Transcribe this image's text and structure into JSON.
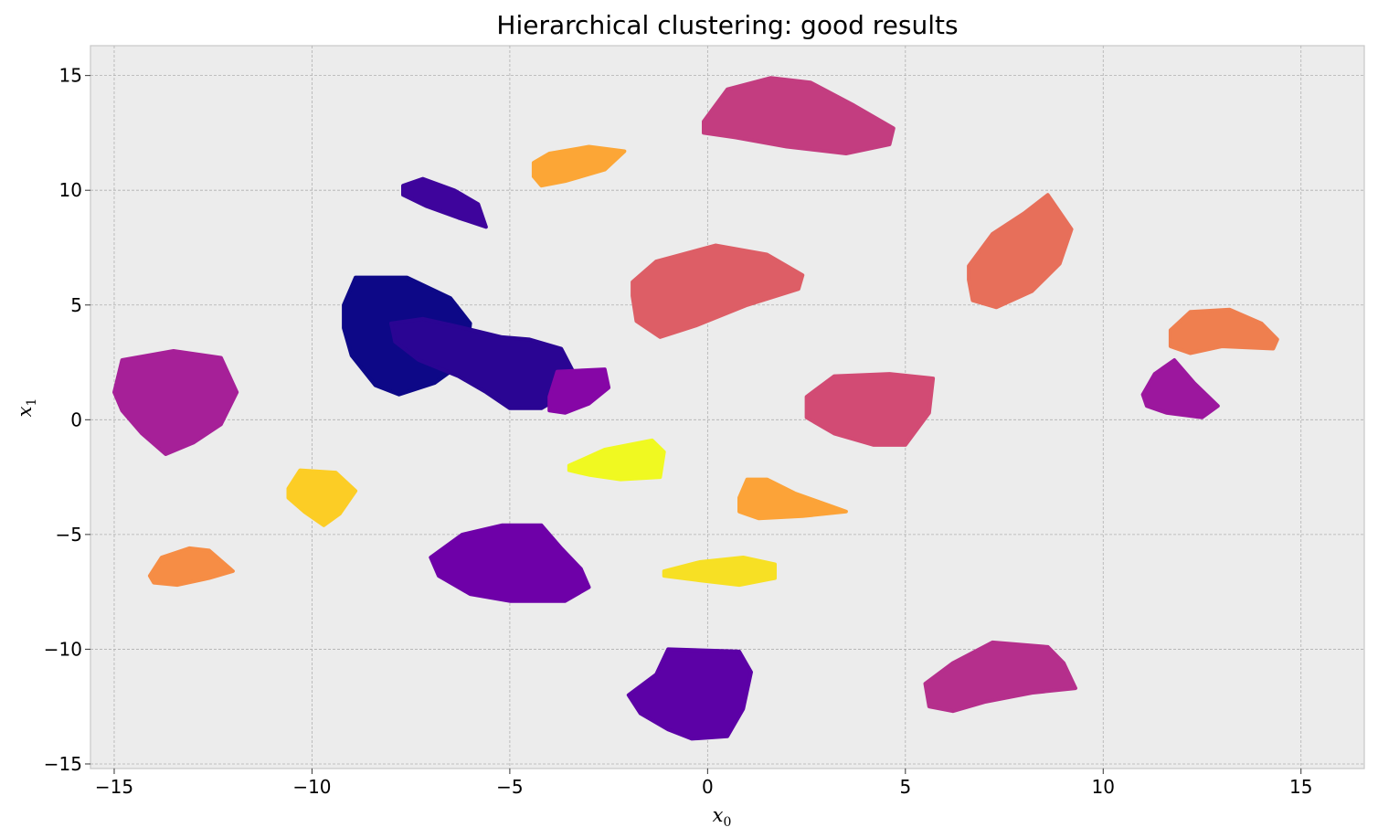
{
  "chart_data": {
    "type": "scatter",
    "title": "Hierarchical clustering: good results",
    "xlabel": {
      "main": "x",
      "sub": "0"
    },
    "ylabel": {
      "main": "x",
      "sub": "1"
    },
    "xlim": [
      -15.6,
      16.6
    ],
    "ylim": [
      -15.2,
      16.3
    ],
    "xticks": [
      -15,
      -10,
      -5,
      0,
      5,
      10,
      15
    ],
    "yticks": [
      -15,
      -10,
      -5,
      0,
      5,
      10,
      15
    ],
    "xtick_labels": [
      "−15",
      "−10",
      "−5",
      "0",
      "5",
      "10",
      "15"
    ],
    "ytick_labels": [
      "−15",
      "−10",
      "−5",
      "0",
      "5",
      "10",
      "15"
    ],
    "grid": true,
    "background": "#ececec",
    "colormap": "plasma",
    "clusters": [
      {
        "color": "#0d0887",
        "outline": [
          [
            -9.2,
            5.0
          ],
          [
            -8.9,
            6.2
          ],
          [
            -7.6,
            6.2
          ],
          [
            -6.5,
            5.3
          ],
          [
            -6.0,
            4.2
          ],
          [
            -6.1,
            2.6
          ],
          [
            -6.9,
            1.6
          ],
          [
            -7.8,
            1.1
          ],
          [
            -8.4,
            1.5
          ],
          [
            -9.0,
            2.8
          ],
          [
            -9.2,
            4.0
          ]
        ]
      },
      {
        "color": "#2a0593",
        "outline": [
          [
            -8.0,
            4.2
          ],
          [
            -7.2,
            4.4
          ],
          [
            -6.4,
            4.1
          ],
          [
            -5.2,
            3.6
          ],
          [
            -4.5,
            3.5
          ],
          [
            -3.7,
            3.1
          ],
          [
            -3.4,
            2.1
          ],
          [
            -3.6,
            1.1
          ],
          [
            -4.2,
            0.5
          ],
          [
            -5.0,
            0.5
          ],
          [
            -5.6,
            1.2
          ],
          [
            -6.3,
            1.9
          ],
          [
            -7.3,
            2.6
          ],
          [
            -7.9,
            3.4
          ]
        ]
      },
      {
        "color": "#3e049c",
        "outline": [
          [
            -7.7,
            10.2
          ],
          [
            -7.2,
            10.5
          ],
          [
            -6.4,
            10.0
          ],
          [
            -5.8,
            9.4
          ],
          [
            -5.6,
            8.4
          ],
          [
            -6.3,
            8.8
          ],
          [
            -7.1,
            9.3
          ],
          [
            -7.7,
            9.8
          ]
        ]
      },
      {
        "color": "#5c01a6",
        "outline": [
          [
            -2.0,
            -12.0
          ],
          [
            -1.3,
            -11.1
          ],
          [
            -1.0,
            -10.0
          ],
          [
            0.8,
            -10.1
          ],
          [
            1.1,
            -11.0
          ],
          [
            0.9,
            -12.6
          ],
          [
            0.5,
            -13.8
          ],
          [
            -0.4,
            -13.9
          ],
          [
            -1.0,
            -13.5
          ],
          [
            -1.7,
            -12.8
          ]
        ]
      },
      {
        "color": "#6e00a8",
        "outline": [
          [
            -7.0,
            -6.0
          ],
          [
            -6.2,
            -5.0
          ],
          [
            -5.2,
            -4.6
          ],
          [
            -4.2,
            -4.6
          ],
          [
            -3.7,
            -5.6
          ],
          [
            -3.2,
            -6.5
          ],
          [
            -3.0,
            -7.3
          ],
          [
            -3.6,
            -7.9
          ],
          [
            -5.0,
            -7.9
          ],
          [
            -6.0,
            -7.6
          ],
          [
            -6.8,
            -6.8
          ]
        ]
      },
      {
        "color": "#8606a6",
        "outline": [
          [
            -4.0,
            1.0
          ],
          [
            -3.8,
            2.1
          ],
          [
            -2.6,
            2.2
          ],
          [
            -2.5,
            1.4
          ],
          [
            -3.0,
            0.7
          ],
          [
            -3.6,
            0.3
          ],
          [
            -4.0,
            0.4
          ]
        ]
      },
      {
        "color": "#9c179e",
        "outline": [
          [
            11.0,
            1.1
          ],
          [
            11.3,
            2.0
          ],
          [
            11.8,
            2.6
          ],
          [
            12.3,
            1.6
          ],
          [
            12.9,
            0.6
          ],
          [
            12.5,
            0.1
          ],
          [
            11.6,
            0.3
          ],
          [
            11.1,
            0.6
          ]
        ]
      },
      {
        "color": "#a62098",
        "outline": [
          [
            -15.0,
            1.2
          ],
          [
            -14.8,
            2.6
          ],
          [
            -13.5,
            3.0
          ],
          [
            -12.3,
            2.7
          ],
          [
            -11.9,
            1.2
          ],
          [
            -12.3,
            -0.2
          ],
          [
            -13.0,
            -1.0
          ],
          [
            -13.7,
            -1.5
          ],
          [
            -14.3,
            -0.6
          ],
          [
            -14.8,
            0.4
          ]
        ]
      },
      {
        "color": "#b52f8c",
        "outline": [
          [
            5.5,
            -11.5
          ],
          [
            6.2,
            -10.6
          ],
          [
            7.2,
            -9.7
          ],
          [
            8.6,
            -9.9
          ],
          [
            9.0,
            -10.6
          ],
          [
            9.3,
            -11.7
          ],
          [
            8.2,
            -11.9
          ],
          [
            7.0,
            -12.3
          ],
          [
            6.2,
            -12.7
          ],
          [
            5.6,
            -12.5
          ]
        ]
      },
      {
        "color": "#c33d80",
        "outline": [
          [
            -0.1,
            13.0
          ],
          [
            0.5,
            14.4
          ],
          [
            1.6,
            14.9
          ],
          [
            2.6,
            14.7
          ],
          [
            3.7,
            13.7
          ],
          [
            4.7,
            12.7
          ],
          [
            4.6,
            12.0
          ],
          [
            3.5,
            11.6
          ],
          [
            2.0,
            11.9
          ],
          [
            0.7,
            12.3
          ],
          [
            -0.1,
            12.5
          ]
        ]
      },
      {
        "color": "#d24b74",
        "outline": [
          [
            2.5,
            1.0
          ],
          [
            3.2,
            1.9
          ],
          [
            4.6,
            2.0
          ],
          [
            5.7,
            1.8
          ],
          [
            5.6,
            0.3
          ],
          [
            5.0,
            -1.1
          ],
          [
            4.2,
            -1.1
          ],
          [
            3.2,
            -0.6
          ],
          [
            2.5,
            0.1
          ]
        ]
      },
      {
        "color": "#dd5e66",
        "outline": [
          [
            -1.9,
            6.0
          ],
          [
            -1.3,
            6.9
          ],
          [
            0.2,
            7.6
          ],
          [
            1.5,
            7.2
          ],
          [
            2.4,
            6.3
          ],
          [
            2.3,
            5.7
          ],
          [
            1.0,
            5.0
          ],
          [
            -0.3,
            4.1
          ],
          [
            -1.2,
            3.6
          ],
          [
            -1.8,
            4.3
          ],
          [
            -1.9,
            5.4
          ]
        ]
      },
      {
        "color": "#e76f5a",
        "outline": [
          [
            6.6,
            6.7
          ],
          [
            7.2,
            8.1
          ],
          [
            8.0,
            9.0
          ],
          [
            8.6,
            9.8
          ],
          [
            9.2,
            8.3
          ],
          [
            8.9,
            6.8
          ],
          [
            8.2,
            5.6
          ],
          [
            7.3,
            4.9
          ],
          [
            6.7,
            5.2
          ],
          [
            6.6,
            6.1
          ]
        ]
      },
      {
        "color": "#ef7f4f",
        "outline": [
          [
            11.7,
            3.9
          ],
          [
            12.2,
            4.7
          ],
          [
            13.2,
            4.8
          ],
          [
            14.0,
            4.2
          ],
          [
            14.4,
            3.5
          ],
          [
            14.3,
            3.1
          ],
          [
            13.0,
            3.2
          ],
          [
            12.2,
            2.9
          ],
          [
            11.7,
            3.2
          ]
        ]
      },
      {
        "color": "#f68d45",
        "outline": [
          [
            -14.1,
            -6.8
          ],
          [
            -13.8,
            -6.0
          ],
          [
            -13.1,
            -5.6
          ],
          [
            -12.6,
            -5.7
          ],
          [
            -12.0,
            -6.6
          ],
          [
            -12.6,
            -6.9
          ],
          [
            -13.4,
            -7.2
          ],
          [
            -14.0,
            -7.1
          ]
        ]
      },
      {
        "color": "#fca636",
        "outline": [
          [
            -4.4,
            11.2
          ],
          [
            -4.0,
            11.6
          ],
          [
            -3.0,
            11.9
          ],
          [
            -2.1,
            11.7
          ],
          [
            -2.6,
            10.9
          ],
          [
            -3.6,
            10.4
          ],
          [
            -4.2,
            10.2
          ],
          [
            -4.4,
            10.6
          ]
        ]
      },
      {
        "color": "#fca338",
        "outline": [
          [
            0.8,
            -3.4
          ],
          [
            1.0,
            -2.6
          ],
          [
            1.5,
            -2.6
          ],
          [
            2.2,
            -3.2
          ],
          [
            3.5,
            -4.0
          ],
          [
            2.4,
            -4.2
          ],
          [
            1.3,
            -4.3
          ],
          [
            0.8,
            -4.0
          ]
        ]
      },
      {
        "color": "#fccd25",
        "outline": [
          [
            -10.6,
            -3.0
          ],
          [
            -10.3,
            -2.2
          ],
          [
            -9.4,
            -2.3
          ],
          [
            -8.9,
            -3.1
          ],
          [
            -9.3,
            -4.1
          ],
          [
            -9.7,
            -4.6
          ],
          [
            -10.2,
            -4.0
          ],
          [
            -10.6,
            -3.4
          ]
        ]
      },
      {
        "color": "#f0f921",
        "outline": [
          [
            -3.5,
            -2.0
          ],
          [
            -2.6,
            -1.3
          ],
          [
            -1.4,
            -0.9
          ],
          [
            -1.1,
            -1.4
          ],
          [
            -1.2,
            -2.5
          ],
          [
            -2.2,
            -2.6
          ],
          [
            -3.0,
            -2.4
          ],
          [
            -3.5,
            -2.2
          ]
        ]
      },
      {
        "color": "#f7e024",
        "outline": [
          [
            -1.1,
            -6.6
          ],
          [
            -0.2,
            -6.2
          ],
          [
            0.9,
            -6.0
          ],
          [
            1.7,
            -6.3
          ],
          [
            1.7,
            -6.9
          ],
          [
            0.8,
            -7.2
          ],
          [
            -0.2,
            -7.0
          ],
          [
            -1.1,
            -6.8
          ]
        ]
      }
    ]
  }
}
